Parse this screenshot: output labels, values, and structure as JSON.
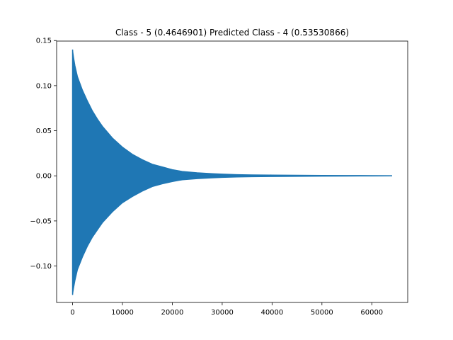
{
  "chart_data": {
    "type": "line",
    "title": "Class - 5 (0.4646901) Predicted Class - 4 (0.53530866)",
    "xlabel": "",
    "ylabel": "",
    "xlim": [
      -3200,
      67200
    ],
    "ylim": [
      -0.1404,
      0.1494
    ],
    "grid": false,
    "legend": "none",
    "x_ticks": [
      {
        "value": 0,
        "label": "0"
      },
      {
        "value": 10000,
        "label": "10000"
      },
      {
        "value": 20000,
        "label": "20000"
      },
      {
        "value": 30000,
        "label": "30000"
      },
      {
        "value": 40000,
        "label": "40000"
      },
      {
        "value": 50000,
        "label": "50000"
      },
      {
        "value": 60000,
        "label": "60000"
      }
    ],
    "y_ticks": [
      {
        "value": 0.15,
        "label": "0.15"
      },
      {
        "value": 0.1,
        "label": "0.10"
      },
      {
        "value": 0.05,
        "label": "0.05"
      },
      {
        "value": 0.0,
        "label": "0.00"
      },
      {
        "value": -0.05,
        "label": "−0.05"
      },
      {
        "value": -0.1,
        "label": "−0.10"
      }
    ],
    "series": [
      {
        "color": "#1f77b4",
        "x": [
          0,
          200,
          500,
          1000,
          2000,
          3000,
          4000,
          5000,
          6000,
          8000,
          10000,
          12000,
          14000,
          16000,
          18000,
          20000,
          22000,
          25000,
          28000,
          30000,
          33000,
          36000,
          40000,
          45000,
          50000,
          55000,
          60000,
          64000
        ],
        "upper": [
          0.14,
          0.132,
          0.122,
          0.11,
          0.095,
          0.083,
          0.072,
          0.063,
          0.055,
          0.042,
          0.032,
          0.024,
          0.018,
          0.013,
          0.01,
          0.007,
          0.005,
          0.0035,
          0.0025,
          0.002,
          0.0015,
          0.0012,
          0.001,
          0.0008,
          0.0006,
          0.0005,
          0.0004,
          0.0003
        ],
        "lower": [
          -0.132,
          -0.125,
          -0.116,
          -0.104,
          -0.09,
          -0.078,
          -0.068,
          -0.06,
          -0.052,
          -0.04,
          -0.03,
          -0.023,
          -0.017,
          -0.012,
          -0.009,
          -0.0065,
          -0.0045,
          -0.0033,
          -0.0024,
          -0.0019,
          -0.0014,
          -0.0011,
          -0.0009,
          -0.0007,
          -0.0005,
          -0.0004,
          -0.0003,
          -0.0002
        ]
      }
    ]
  }
}
